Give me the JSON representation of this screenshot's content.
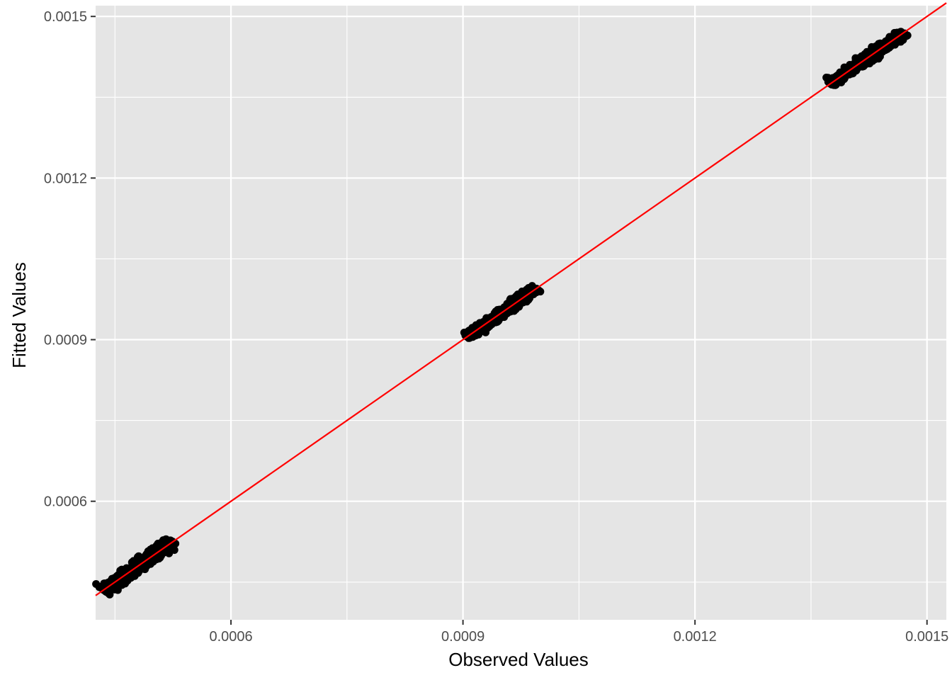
{
  "chart_data": {
    "type": "scatter",
    "title": "",
    "xlabel": "Observed Values",
    "ylabel": "Fitted Values",
    "xlim": [
      0.000425,
      0.001525
    ],
    "ylim": [
      0.00038,
      0.00152
    ],
    "x_ticks": [
      0.0006,
      0.0009,
      0.0012,
      0.0015
    ],
    "y_ticks": [
      0.0006,
      0.0009,
      0.0012,
      0.0015
    ],
    "x_tick_labels": [
      "0.0006",
      "0.0009",
      "0.0012",
      "0.0015"
    ],
    "y_tick_labels": [
      "0.0006",
      "0.0009",
      "0.0012",
      "0.0015"
    ],
    "x_minor_ticks": [
      0.00045,
      0.00075,
      0.00105,
      0.00135
    ],
    "y_minor_ticks": [
      0.00045,
      0.00075,
      0.00105,
      0.00135
    ],
    "grid": true,
    "background_color": "#e5e5e5",
    "grid_color": "#ffffff",
    "point_color": "#000000",
    "reference_line": {
      "type": "identity",
      "slope": 1,
      "intercept": 0,
      "color": "#ff0000"
    },
    "clusters": [
      {
        "x_range": [
          0.000435,
          0.000525
        ],
        "y_range": [
          0.000435,
          0.000525
        ],
        "spread": 6e-06,
        "count": 700
      },
      {
        "x_range": [
          0.000905,
          0.000995
        ],
        "y_range": [
          0.000905,
          0.000995
        ],
        "spread": 5e-06,
        "count": 700
      },
      {
        "x_range": [
          0.001375,
          0.00147
        ],
        "y_range": [
          0.001375,
          0.00147
        ],
        "spread": 5e-06,
        "count": 700
      }
    ]
  }
}
